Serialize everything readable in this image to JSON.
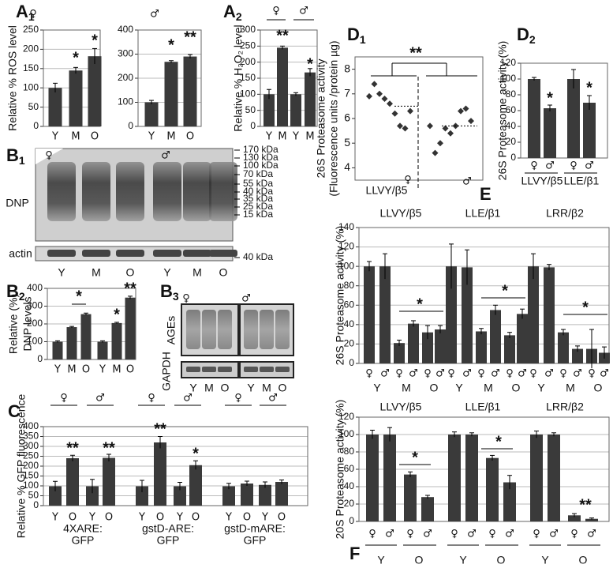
{
  "chart_data": [
    {
      "type": "bar",
      "panel": "A",
      "panel_sub": "1",
      "group_symbols": [
        "♀"
      ],
      "ylabel": "Relative % ROS level",
      "categories": [
        "Y",
        "M",
        "O"
      ],
      "values": [
        100,
        145,
        182
      ],
      "errors": [
        12,
        8,
        20
      ],
      "ylim": [
        0,
        250
      ],
      "yticks": [
        0,
        50,
        100,
        150,
        200,
        250
      ],
      "grid": true,
      "color": "#3a3a3a",
      "annotations": [
        "*",
        "*"
      ]
    },
    {
      "type": "bar",
      "group_symbols": [
        "♂"
      ],
      "categories": [
        "Y",
        "M",
        "O"
      ],
      "values": [
        100,
        268,
        290
      ],
      "errors": [
        8,
        5,
        8
      ],
      "ylim": [
        0,
        400
      ],
      "yticks": [
        0,
        100,
        200,
        300,
        400
      ],
      "grid": true,
      "color": "#3a3a3a",
      "annotations": [
        "*",
        "**"
      ]
    },
    {
      "type": "bar",
      "panel": "A",
      "panel_sub": "2",
      "group_symbols": [
        "♀",
        "♂"
      ],
      "ylabel": "Relative % H₂O₂ level",
      "categories": [
        "Y",
        "M",
        "Y",
        "M"
      ],
      "values": [
        100,
        245,
        100,
        168
      ],
      "errors": [
        15,
        5,
        5,
        12
      ],
      "ylim": [
        0,
        300
      ],
      "yticks": [
        0,
        50,
        100,
        150,
        200,
        250,
        300
      ],
      "grid": true,
      "color": "#3a3a3a",
      "annotations": [
        "**",
        "*"
      ]
    },
    {
      "type": "scatter",
      "panel": "D",
      "panel_sub": "1",
      "ylabel": [
        "26S Proteasome activity",
        "(Fluorescence units /protein µg)"
      ],
      "xlabel": "LLVY/β5",
      "sexes": [
        "♀",
        "♂"
      ],
      "annotations": [
        "**"
      ],
      "ylim": [
        3.5,
        8.5
      ],
      "yticks": [
        4,
        5,
        6,
        7,
        8
      ],
      "series": [
        {
          "name": "♀",
          "color": "#333333",
          "values": [
            6.9,
            7.4,
            7.0,
            6.8,
            6.6,
            6.2,
            5.7,
            5.6,
            6.3
          ],
          "mean": 6.5
        },
        {
          "name": "♂",
          "color": "#333333",
          "values": [
            5.7,
            4.6,
            5.0,
            5.6,
            5.4,
            5.7,
            6.3,
            6.4,
            5.9
          ],
          "mean": 5.7
        }
      ]
    },
    {
      "type": "bar",
      "panel": "D",
      "panel_sub": "2",
      "ylabel": "26S Proteasome activity (%)",
      "categories": [
        "♀",
        "♂",
        "♀",
        "♂"
      ],
      "groups": [
        "LLVY/β5",
        "LLE/β1"
      ],
      "values": [
        100,
        63,
        100,
        70
      ],
      "errors": [
        2,
        4,
        12,
        9
      ],
      "ylim": [
        0,
        120
      ],
      "yticks": [
        0,
        20,
        40,
        60,
        80,
        100,
        120
      ],
      "grid": false,
      "color": "#3a3a3a",
      "annotations": [
        "*",
        "*"
      ]
    },
    {
      "type": "bar",
      "panel": "B",
      "panel_sub": "2",
      "ylabel": [
        "Relative (%)",
        "DNP levels"
      ],
      "categories": [
        "Y",
        "M",
        "O",
        "Y",
        "M",
        "O"
      ],
      "values": [
        100,
        182,
        255,
        100,
        205,
        348
      ],
      "errors": [
        5,
        4,
        6,
        5,
        4,
        8
      ],
      "ylim": [
        0,
        400
      ],
      "yticks": [
        0,
        100,
        200,
        300,
        400
      ],
      "grid": true,
      "color": "#3a3a3a",
      "annotations": [
        "*",
        "*",
        "**"
      ]
    },
    {
      "type": "bar",
      "panel": "C",
      "ylabel": "Relative % GFP fluorescence",
      "group_symbols": [
        "♀",
        "♂",
        "♀",
        "♂",
        "♀",
        "♂"
      ],
      "categories": [
        "Y",
        "O",
        "Y",
        "O",
        "Y",
        "O",
        "Y",
        "O",
        "Y",
        "O",
        "Y",
        "O"
      ],
      "groups": [
        [
          "4XARE:",
          "GFP"
        ],
        [
          "gstD-ARE:",
          "GFP"
        ],
        [
          "gstD-mARE:",
          "GFP"
        ]
      ],
      "values": [
        98,
        240,
        98,
        242,
        98,
        320,
        98,
        205,
        98,
        112,
        105,
        120
      ],
      "errors": [
        25,
        15,
        35,
        18,
        30,
        30,
        20,
        22,
        15,
        12,
        15,
        10
      ],
      "ylim": [
        0,
        400
      ],
      "yticks": [
        0,
        50,
        100,
        150,
        200,
        250,
        300,
        350,
        400
      ],
      "grid": true,
      "color": "#3a3a3a",
      "annotations": [
        "**",
        "**",
        "**",
        "*"
      ]
    },
    {
      "type": "bar",
      "panel": "E",
      "ylabel": "26S Proteasome activity (%)",
      "groups": [
        "LLVY/β5",
        "LLE/β1",
        "LRR/β2"
      ],
      "categories": [
        "♀",
        "♂",
        "♀",
        "♂",
        "♀",
        "♂",
        "♀",
        "♂",
        "♀",
        "♂",
        "♀",
        "♂",
        "♀",
        "♂",
        "♀",
        "♂",
        "♀",
        "♂"
      ],
      "subgroups": [
        "Y",
        "M",
        "O",
        "Y",
        "M",
        "O",
        "Y",
        "M",
        "O"
      ],
      "values": [
        100,
        100,
        21,
        41,
        32,
        35,
        100,
        99,
        33,
        55,
        29,
        51,
        100,
        99,
        32,
        15,
        15,
        11
      ],
      "errors": [
        5,
        13,
        3,
        3,
        7,
        4,
        23,
        18,
        3,
        5,
        3,
        5,
        13,
        3,
        3,
        3,
        20,
        6
      ],
      "ylim": [
        0,
        140
      ],
      "yticks": [
        0,
        20,
        40,
        60,
        80,
        100,
        120,
        140
      ],
      "grid": true,
      "color": "#3a3a3a",
      "annotations": [
        "*",
        "*",
        "*"
      ]
    },
    {
      "type": "bar",
      "panel": "F",
      "ylabel": "20S Proteasome activity (%)",
      "groups": [
        "LLVY/β5",
        "LLE/β1",
        "LRR/β2"
      ],
      "categories": [
        "♀",
        "♂",
        "♀",
        "♂",
        "♀",
        "♂",
        "♀",
        "♂",
        "♀",
        "♂",
        "♀",
        "♂"
      ],
      "subgroups": [
        "Y",
        "O",
        "Y",
        "O",
        "Y",
        "O"
      ],
      "values": [
        100,
        100,
        54,
        28,
        100,
        100,
        73,
        45,
        100,
        100,
        7,
        3
      ],
      "errors": [
        5,
        8,
        3,
        2,
        3,
        2,
        3,
        8,
        4,
        2,
        2,
        1
      ],
      "ylim": [
        0,
        120
      ],
      "yticks": [
        0,
        20,
        40,
        60,
        80,
        100,
        120
      ],
      "grid": true,
      "color": "#3a3a3a",
      "annotations": [
        "*",
        "*",
        "**"
      ]
    }
  ],
  "blots": [
    {
      "panel": "B",
      "panel_sub": "1",
      "sexes": [
        "♀",
        "♂"
      ],
      "rows": [
        "DNP",
        "actin"
      ],
      "lanes": [
        "Y",
        "M",
        "O",
        "Y",
        "M",
        "O"
      ],
      "markers": [
        "170 kDa",
        "130 kDa",
        "100 kDa",
        "70 kDa",
        "55 kDa",
        "40 kDa",
        "35 kDa",
        "25 kDa",
        "15 kDa"
      ],
      "loading_marker": "40 kDa"
    },
    {
      "panel": "B",
      "panel_sub": "3",
      "sexes": [
        "♀",
        "♂"
      ],
      "rows": [
        "AGEs",
        "GAPDH"
      ],
      "lanes": [
        "Y",
        "M",
        "O",
        "Y",
        "M",
        "O"
      ]
    }
  ]
}
